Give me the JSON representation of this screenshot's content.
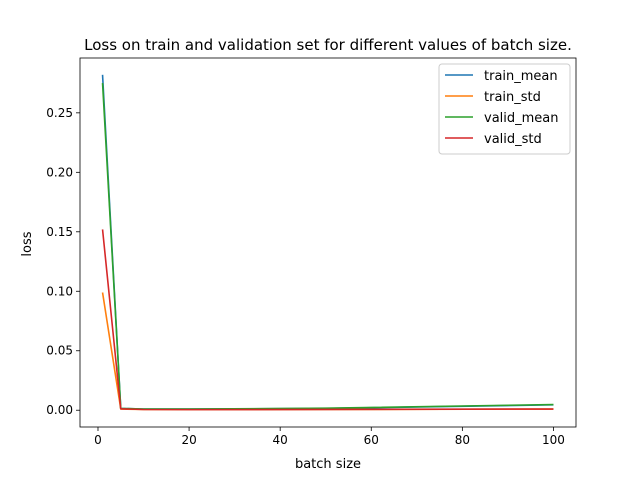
{
  "chart_data": {
    "type": "line",
    "title": "Loss on train and validation set for different values of batch size.",
    "xlabel": "batch size",
    "ylabel": "loss",
    "x": [
      1,
      5,
      10,
      20,
      50,
      100
    ],
    "series": [
      {
        "name": "train_mean",
        "color": "#1f77b4",
        "values": [
          0.282,
          0.0015,
          0.001,
          0.001,
          0.0015,
          0.0045
        ]
      },
      {
        "name": "train_std",
        "color": "#ff7f0e",
        "values": [
          0.099,
          0.001,
          0.0006,
          0.0005,
          0.0006,
          0.001
        ]
      },
      {
        "name": "valid_mean",
        "color": "#2ca02c",
        "values": [
          0.275,
          0.0015,
          0.001,
          0.001,
          0.0017,
          0.0048
        ]
      },
      {
        "name": "valid_std",
        "color": "#d62728",
        "values": [
          0.152,
          0.0012,
          0.0006,
          0.0005,
          0.0007,
          0.001
        ]
      }
    ],
    "xlim": [
      -3.95,
      104.95
    ],
    "ylim": [
      -0.0141,
      0.2961
    ],
    "xticks": [
      0,
      20,
      40,
      60,
      80,
      100
    ],
    "xtick_labels": [
      "0",
      "20",
      "40",
      "60",
      "80",
      "100"
    ],
    "yticks": [
      0.0,
      0.05,
      0.1,
      0.15,
      0.2,
      0.25
    ],
    "ytick_labels": [
      "0.00",
      "0.05",
      "0.10",
      "0.15",
      "0.20",
      "0.25"
    ],
    "legend": "top-right",
    "grid": false
  }
}
